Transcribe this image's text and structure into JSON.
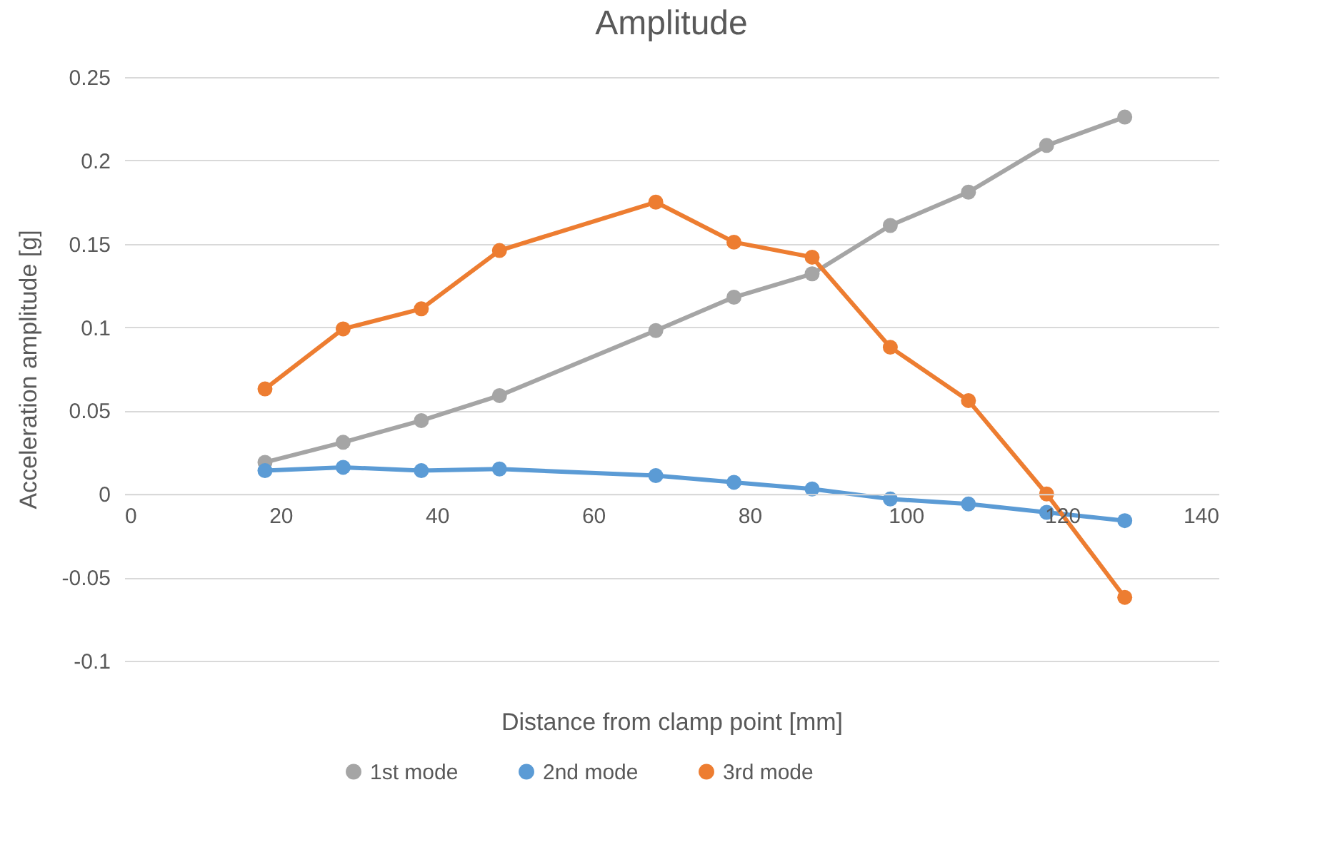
{
  "chart_data": {
    "type": "line",
    "title": "Amplitude",
    "xlabel": "Distance from clamp point [mm]",
    "ylabel": "Acceleration amplitude [g]",
    "x": [
      18,
      28,
      38,
      48,
      68,
      78,
      88,
      98,
      108,
      118,
      128
    ],
    "series": [
      {
        "name": "1st mode",
        "color": "#a5a5a5",
        "values": [
          0.019,
          0.031,
          0.044,
          0.059,
          0.098,
          0.118,
          0.132,
          0.161,
          0.181,
          0.209,
          0.226
        ]
      },
      {
        "name": "2nd mode",
        "color": "#5b9bd5",
        "values": [
          0.014,
          0.016,
          0.014,
          0.015,
          0.011,
          0.007,
          0.003,
          -0.003,
          -0.006,
          -0.011,
          -0.016
        ]
      },
      {
        "name": "3rd mode",
        "color": "#ed7d31",
        "values": [
          0.063,
          0.099,
          0.111,
          0.146,
          0.175,
          0.151,
          0.142,
          0.088,
          0.056,
          0.0,
          -0.062
        ]
      }
    ],
    "xlim": [
      0,
      140
    ],
    "xticks": [
      0,
      20,
      40,
      60,
      80,
      100,
      120,
      140
    ],
    "ylim": [
      -0.1,
      0.25
    ],
    "yticks": [
      -0.1,
      -0.05,
      0,
      0.05,
      0.1,
      0.15,
      0.2,
      0.25
    ],
    "grid": "y",
    "legend": "bottom",
    "marker": "circle",
    "line_style": "solid"
  }
}
